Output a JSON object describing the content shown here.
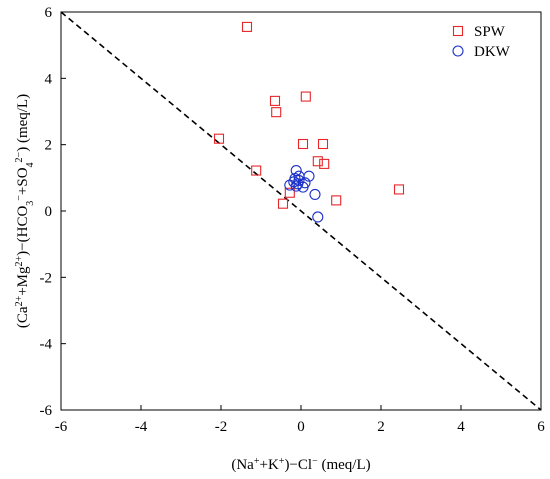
{
  "chart_data": {
    "type": "scatter",
    "title": "",
    "xlabel_parts": [
      {
        "t": "(Na"
      },
      {
        "t": "+",
        "sup": true
      },
      {
        "t": "+K"
      },
      {
        "t": "+",
        "sup": true
      },
      {
        "t": ")−Cl"
      },
      {
        "t": "−",
        "sup": true
      },
      {
        "t": " (meq/L)"
      }
    ],
    "ylabel_parts": [
      {
        "t": "(Ca"
      },
      {
        "t": "2+",
        "sup": true
      },
      {
        "t": "+Mg"
      },
      {
        "t": "2+",
        "sup": true
      },
      {
        "t": ")−(HCO"
      },
      {
        "t": "3",
        "sub": true
      },
      {
        "t": "−",
        "sup": true
      },
      {
        "t": "+SO"
      },
      {
        "t": "4",
        "sub": true
      },
      {
        "t": "2−",
        "sup": true
      },
      {
        "t": ") (meq/L)"
      }
    ],
    "xlim": [
      -6,
      6
    ],
    "ylim": [
      -6,
      6
    ],
    "xticks": [
      -6,
      -4,
      -2,
      0,
      2,
      4,
      6
    ],
    "yticks": [
      -6,
      -4,
      -2,
      0,
      2,
      4,
      6
    ],
    "grid": false,
    "legend_position": "top-right",
    "reference_line": {
      "slope": -1,
      "intercept": 0,
      "style": "dashed",
      "color": "#000000"
    },
    "series": [
      {
        "name": "SPW",
        "marker": "square",
        "color": "#e8262a",
        "points": [
          [
            -1.35,
            5.55
          ],
          [
            -0.65,
            3.32
          ],
          [
            0.12,
            3.45
          ],
          [
            -0.62,
            2.98
          ],
          [
            -2.05,
            2.18
          ],
          [
            0.05,
            2.02
          ],
          [
            0.55,
            2.02
          ],
          [
            -1.12,
            1.22
          ],
          [
            0.42,
            1.5
          ],
          [
            0.58,
            1.42
          ],
          [
            -0.28,
            0.55
          ],
          [
            -0.45,
            0.22
          ],
          [
            0.88,
            0.32
          ],
          [
            2.45,
            0.65
          ]
        ]
      },
      {
        "name": "DKW",
        "marker": "circle",
        "color": "#1c31c9",
        "points": [
          [
            -0.12,
            1.22
          ],
          [
            -0.05,
            1.05
          ],
          [
            0.2,
            1.05
          ],
          [
            -0.15,
            0.98
          ],
          [
            -0.05,
            0.92
          ],
          [
            -0.18,
            0.88
          ],
          [
            0.1,
            0.85
          ],
          [
            -0.08,
            0.82
          ],
          [
            -0.28,
            0.78
          ],
          [
            -0.12,
            0.75
          ],
          [
            0.05,
            0.72
          ],
          [
            0.35,
            0.5
          ],
          [
            0.42,
            -0.18
          ]
        ]
      }
    ]
  }
}
